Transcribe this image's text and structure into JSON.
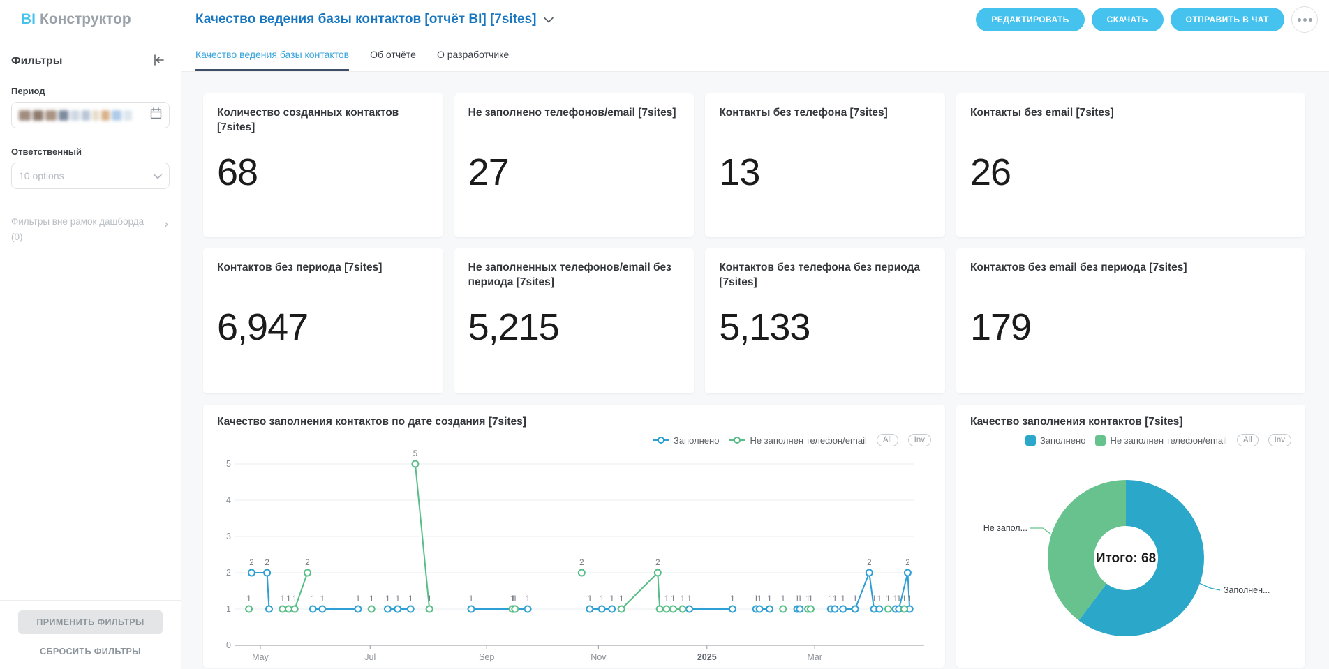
{
  "app": {
    "logo_bi": "BI",
    "logo_name": "Конструктор"
  },
  "header": {
    "title": "Качество ведения базы контактов [отчёт BI] [7sites]",
    "edit_button": "РЕДАКТИРОВАТЬ",
    "download_button": "СКАЧАТЬ",
    "send_to_chat_button": "ОТПРАВИТЬ В ЧАТ"
  },
  "tabs": [
    {
      "label": "Качество ведения базы контактов",
      "active": true
    },
    {
      "label": "Об отчёте",
      "active": false
    },
    {
      "label": "О разработчике",
      "active": false
    }
  ],
  "sidebar": {
    "title": "Фильтры",
    "period_label": "Период",
    "responsible_label": "Ответственный",
    "responsible_placeholder": "10 options",
    "outer_filters_label": "Фильтры вне рамок дашборда",
    "outer_filters_count": "(0)",
    "apply_button": "ПРИМЕНИТЬ ФИЛЬТРЫ",
    "reset_button": "СБРОСИТЬ ФИЛЬТРЫ"
  },
  "kpi_cards": [
    {
      "title": "Количество созданных контактов [7sites]",
      "value": "68"
    },
    {
      "title": "Не заполнено телефонов/email [7sites]",
      "value": "27"
    },
    {
      "title": "Контакты без телефона [7sites]",
      "value": "13"
    },
    {
      "title": "Контакты без email [7sites]",
      "value": "26"
    },
    {
      "title": "Контактов без периода [7sites]",
      "value": "6,947"
    },
    {
      "title": "Не заполненных телефонов/email без периода [7sites]",
      "value": "5,215"
    },
    {
      "title": "Контактов без телефона без периода [7sites]",
      "value": "5,133"
    },
    {
      "title": "Контактов без email без периода [7sites]",
      "value": "179"
    }
  ],
  "colors": {
    "accent_cyan": "#45c3ee",
    "title_blue": "#1877c0",
    "tab_active": "#36a3dc",
    "tab_underline": "#3f4e68",
    "line_blue": "#2d9fd4",
    "line_green": "#58bd87",
    "donut_blue": "#2ba7c9",
    "donut_green": "#68c28e"
  },
  "chart_data": [
    {
      "type": "line",
      "title": "Качество заполнения контактов по дате создания [7sites]",
      "legend_buttons": [
        "All",
        "Inv"
      ],
      "grid": true,
      "ylim": [
        0,
        5
      ],
      "y_ticks": [
        0,
        1,
        2,
        3,
        4,
        5
      ],
      "x_ticks": [
        {
          "label": "May",
          "f": 0.029
        },
        {
          "label": "Jul",
          "f": 0.192
        },
        {
          "label": "Sep",
          "f": 0.365
        },
        {
          "label": "Nov",
          "f": 0.531
        },
        {
          "label": "2025",
          "f": 0.692,
          "bold": true
        },
        {
          "label": "Mar",
          "f": 0.852
        }
      ],
      "series": [
        {
          "name": "Заполнено",
          "color": "#2d9fd4",
          "segments": [
            [
              [
                0.016,
                2,
                "2"
              ],
              [
                0.039,
                2,
                "2"
              ],
              [
                0.042,
                1,
                "1"
              ]
            ],
            [
              [
                0.107,
                1,
                "1"
              ],
              [
                0.121,
                1,
                "1"
              ],
              [
                0.174,
                1,
                "1"
              ]
            ],
            [
              [
                0.218,
                1,
                "1"
              ],
              [
                0.233,
                1,
                "1"
              ],
              [
                0.252,
                1,
                "1"
              ]
            ],
            [
              [
                0.342,
                1,
                "1"
              ],
              [
                0.404,
                1,
                "1"
              ],
              [
                0.426,
                1,
                "1"
              ]
            ],
            [
              [
                0.518,
                1,
                "1"
              ],
              [
                0.536,
                1,
                "1"
              ],
              [
                0.551,
                1,
                "1"
              ]
            ],
            [
              [
                0.666,
                1,
                "1"
              ],
              [
                0.73,
                1,
                "1"
              ]
            ],
            [
              [
                0.765,
                1,
                "1"
              ],
              [
                0.77,
                1,
                "1"
              ],
              [
                0.785,
                1,
                "1"
              ]
            ],
            [
              [
                0.826,
                1,
                "1"
              ],
              [
                0.83,
                1,
                "1"
              ]
            ],
            [
              [
                0.876,
                1,
                "1"
              ],
              [
                0.882,
                1,
                "1"
              ]
            ],
            [
              [
                0.894,
                1,
                "1"
              ],
              [
                0.912,
                1,
                "1"
              ],
              [
                0.933,
                2,
                "2"
              ],
              [
                0.94,
                1,
                "1"
              ],
              [
                0.948,
                1,
                "1"
              ]
            ],
            [
              [
                0.972,
                1,
                "1"
              ],
              [
                0.977,
                1,
                "1"
              ],
              [
                0.99,
                2,
                "2"
              ],
              [
                0.993,
                1,
                "1"
              ]
            ]
          ]
        },
        {
          "name": "Не заполнен телефон/email",
          "color": "#58bd87",
          "segments": [
            [
              [
                0.012,
                1,
                "1"
              ]
            ],
            [
              [
                0.062,
                1,
                "1"
              ],
              [
                0.071,
                1,
                "1"
              ],
              [
                0.08,
                1,
                "1"
              ],
              [
                0.099,
                2,
                "2"
              ]
            ],
            [
              [
                0.194,
                1,
                "1"
              ]
            ],
            [
              [
                0.259,
                5,
                "5"
              ],
              [
                0.28,
                1,
                "1"
              ]
            ],
            [
              [
                0.403,
                1,
                "1"
              ],
              [
                0.407,
                1,
                "1"
              ]
            ],
            [
              [
                0.506,
                2,
                "2"
              ]
            ],
            [
              [
                0.565,
                1,
                "1"
              ],
              [
                0.619,
                2,
                "2"
              ],
              [
                0.622,
                1,
                "1"
              ],
              [
                0.632,
                1,
                "1"
              ],
              [
                0.642,
                1,
                "1"
              ],
              [
                0.656,
                1,
                "1"
              ]
            ],
            [
              [
                0.805,
                1,
                "1"
              ]
            ],
            [
              [
                0.842,
                1,
                "1"
              ],
              [
                0.846,
                1,
                "1"
              ]
            ],
            [
              [
                0.961,
                1,
                "1"
              ]
            ],
            [
              [
                0.985,
                1,
                "1"
              ]
            ]
          ]
        }
      ]
    },
    {
      "type": "donut",
      "title": "Качество заполнения контактов [7sites]",
      "legend_buttons": [
        "All",
        "Inv"
      ],
      "center_label": "Итого: 68",
      "total": 68,
      "slices": [
        {
          "name": "Заполнено",
          "value": 41,
          "color": "#2ba7c9",
          "callout": "Заполнен..."
        },
        {
          "name": "Не заполнен телефон/email",
          "value": 27,
          "color": "#68c28e",
          "callout": "Не запол..."
        }
      ]
    }
  ]
}
